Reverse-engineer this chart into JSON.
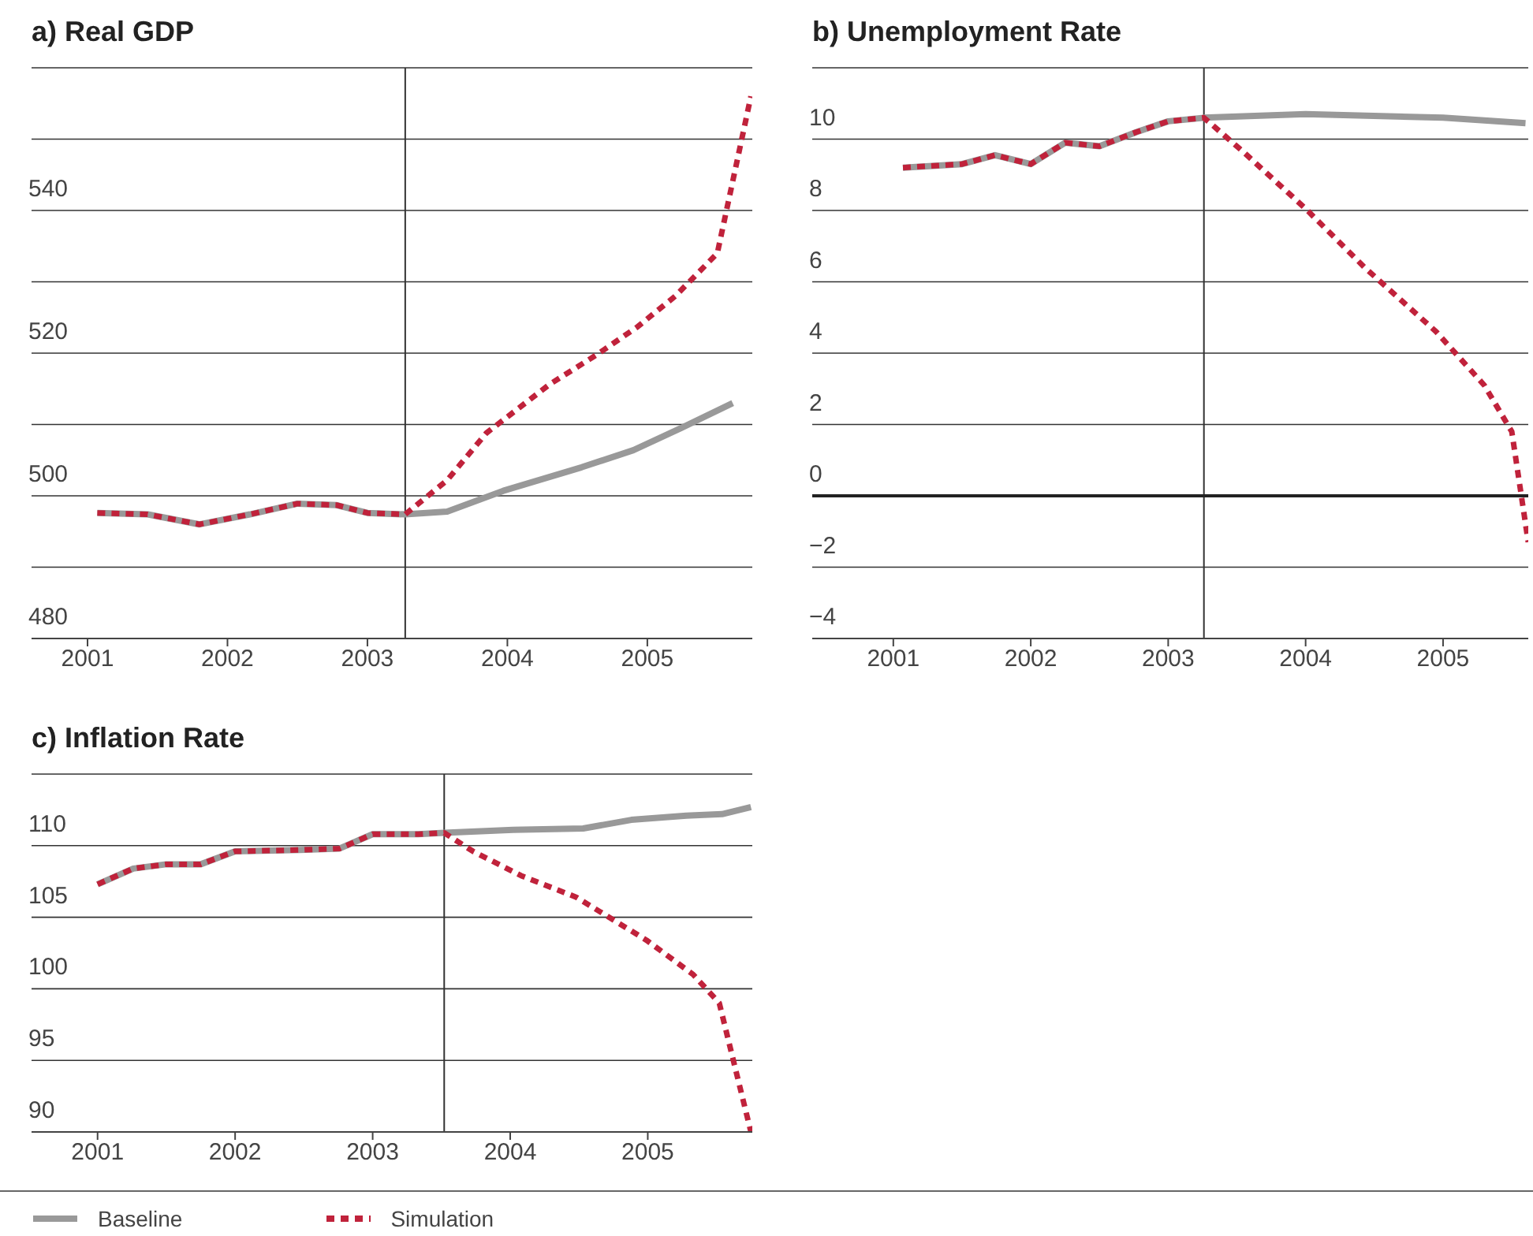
{
  "chart_data": [
    {
      "type": "line",
      "title": "a) Real GDP",
      "xlim": [
        2000.6,
        2005.75
      ],
      "xticks": [
        2001,
        2002,
        2003,
        2004,
        2005
      ],
      "ylim": [
        480,
        560
      ],
      "yticks": [
        480,
        {
          "value": 490,
          "label": null
        },
        500,
        {
          "value": 510,
          "label": null
        },
        520,
        {
          "value": 530,
          "label": null
        },
        540,
        {
          "value": 550,
          "label": null
        },
        {
          "value": 560,
          "label": null
        }
      ],
      "grid": "y",
      "legend": false,
      "ref_lines": [
        {
          "axis": "x",
          "value": 2003.27,
          "color": "#333333"
        }
      ],
      "series": [
        {
          "color": "#999999",
          "line_style": "solid",
          "x": [
            2001.07,
            2001.43,
            2001.8,
            2002.16,
            2002.5,
            2002.78,
            2003.0,
            2003.27,
            2003.57,
            2003.97,
            2004.53,
            2004.9,
            2005.24,
            2005.61
          ],
          "values": [
            497.6,
            497.4,
            496,
            497.4,
            498.9,
            498.7,
            497.6,
            497.4,
            497.8,
            500.7,
            504,
            506.4,
            509.5,
            513
          ]
        },
        {
          "color": "#c0223b",
          "line_style": "dashed",
          "x": [
            2001.07,
            2001.43,
            2001.8,
            2002.16,
            2002.5,
            2002.78,
            2003.0,
            2003.27,
            2003.57,
            2003.85,
            2004.3,
            2004.64,
            2004.93,
            2005.2,
            2005.5,
            2005.74
          ],
          "values": [
            497.6,
            497.4,
            496,
            497.4,
            498.9,
            498.7,
            497.6,
            497.4,
            502.2,
            508.8,
            515.6,
            519.8,
            523.7,
            528,
            534,
            556
          ]
        }
      ]
    },
    {
      "type": "line",
      "title": "b) Unemployment Rate",
      "xlim": [
        2000.41,
        2005.62
      ],
      "xticks": [
        2001,
        2002,
        2003,
        2004,
        2005
      ],
      "ylim": [
        -4,
        12
      ],
      "yticks": [
        {
          "value": -4,
          "label": "−4"
        },
        {
          "value": -2,
          "label": "−2"
        },
        0,
        2,
        4,
        6,
        8,
        10,
        {
          "value": 12,
          "label": null
        }
      ],
      "grid": "y",
      "legend": false,
      "ref_lines": [
        {
          "axis": "x",
          "value": 2003.26,
          "color": "#333333"
        },
        {
          "axis": "y",
          "value": 0,
          "color": "#222222"
        }
      ],
      "series": [
        {
          "color": "#999999",
          "line_style": "solid",
          "x": [
            2001.07,
            2001.5,
            2001.74,
            2002.0,
            2002.25,
            2002.5,
            2002.77,
            2003.0,
            2003.26,
            2004.0,
            2005.0,
            2005.6
          ],
          "values": [
            9.2,
            9.3,
            9.55,
            9.3,
            9.9,
            9.8,
            10.2,
            10.5,
            10.6,
            10.7,
            10.6,
            10.45
          ]
        },
        {
          "color": "#c0223b",
          "line_style": "dashed",
          "x": [
            2001.07,
            2001.5,
            2001.74,
            2002.0,
            2002.25,
            2002.5,
            2002.77,
            2003.0,
            2003.26,
            2003.53,
            2004.0,
            2004.43,
            2004.95,
            2005.3,
            2005.5,
            2005.62
          ],
          "values": [
            9.2,
            9.3,
            9.55,
            9.3,
            9.9,
            9.8,
            10.2,
            10.5,
            10.6,
            9.7,
            8.05,
            6.4,
            4.6,
            3.1,
            1.8,
            -1.3
          ]
        }
      ]
    },
    {
      "type": "line",
      "title": "c) Inflation Rate",
      "xlim": [
        2000.52,
        2005.76
      ],
      "xticks": [
        2001,
        2002,
        2003,
        2004,
        2005
      ],
      "ylim": [
        90,
        115
      ],
      "yticks": [
        90,
        95,
        100,
        105,
        110,
        {
          "value": 115,
          "label": null
        }
      ],
      "grid": "y",
      "legend": "bottom",
      "ref_lines": [
        {
          "axis": "x",
          "value": 2003.52,
          "color": "#333333"
        }
      ],
      "series": [
        {
          "name": "Baseline",
          "color": "#999999",
          "line_style": "solid",
          "x": [
            2001.0,
            2001.26,
            2001.5,
            2001.75,
            2002.0,
            2002.47,
            2002.76,
            2003.0,
            2003.33,
            2003.52,
            2004.02,
            2004.53,
            2004.88,
            2005.28,
            2005.54,
            2005.75
          ],
          "values": [
            107.3,
            108.4,
            108.7,
            108.7,
            109.6,
            109.7,
            109.8,
            110.8,
            110.8,
            110.9,
            111.1,
            111.2,
            111.8,
            112.1,
            112.2,
            112.7
          ]
        },
        {
          "name": "Simulation",
          "color": "#c0223b",
          "line_style": "dashed",
          "x": [
            2001.0,
            2001.26,
            2001.5,
            2001.75,
            2002.0,
            2002.47,
            2002.76,
            2003.0,
            2003.33,
            2003.52,
            2003.73,
            2004.08,
            2004.48,
            2004.99,
            2005.33,
            2005.52,
            2005.75
          ],
          "values": [
            107.3,
            108.4,
            108.7,
            108.7,
            109.6,
            109.7,
            109.8,
            110.8,
            110.8,
            110.9,
            109.6,
            107.9,
            106.4,
            103.4,
            101,
            99,
            90
          ]
        }
      ]
    }
  ]
}
